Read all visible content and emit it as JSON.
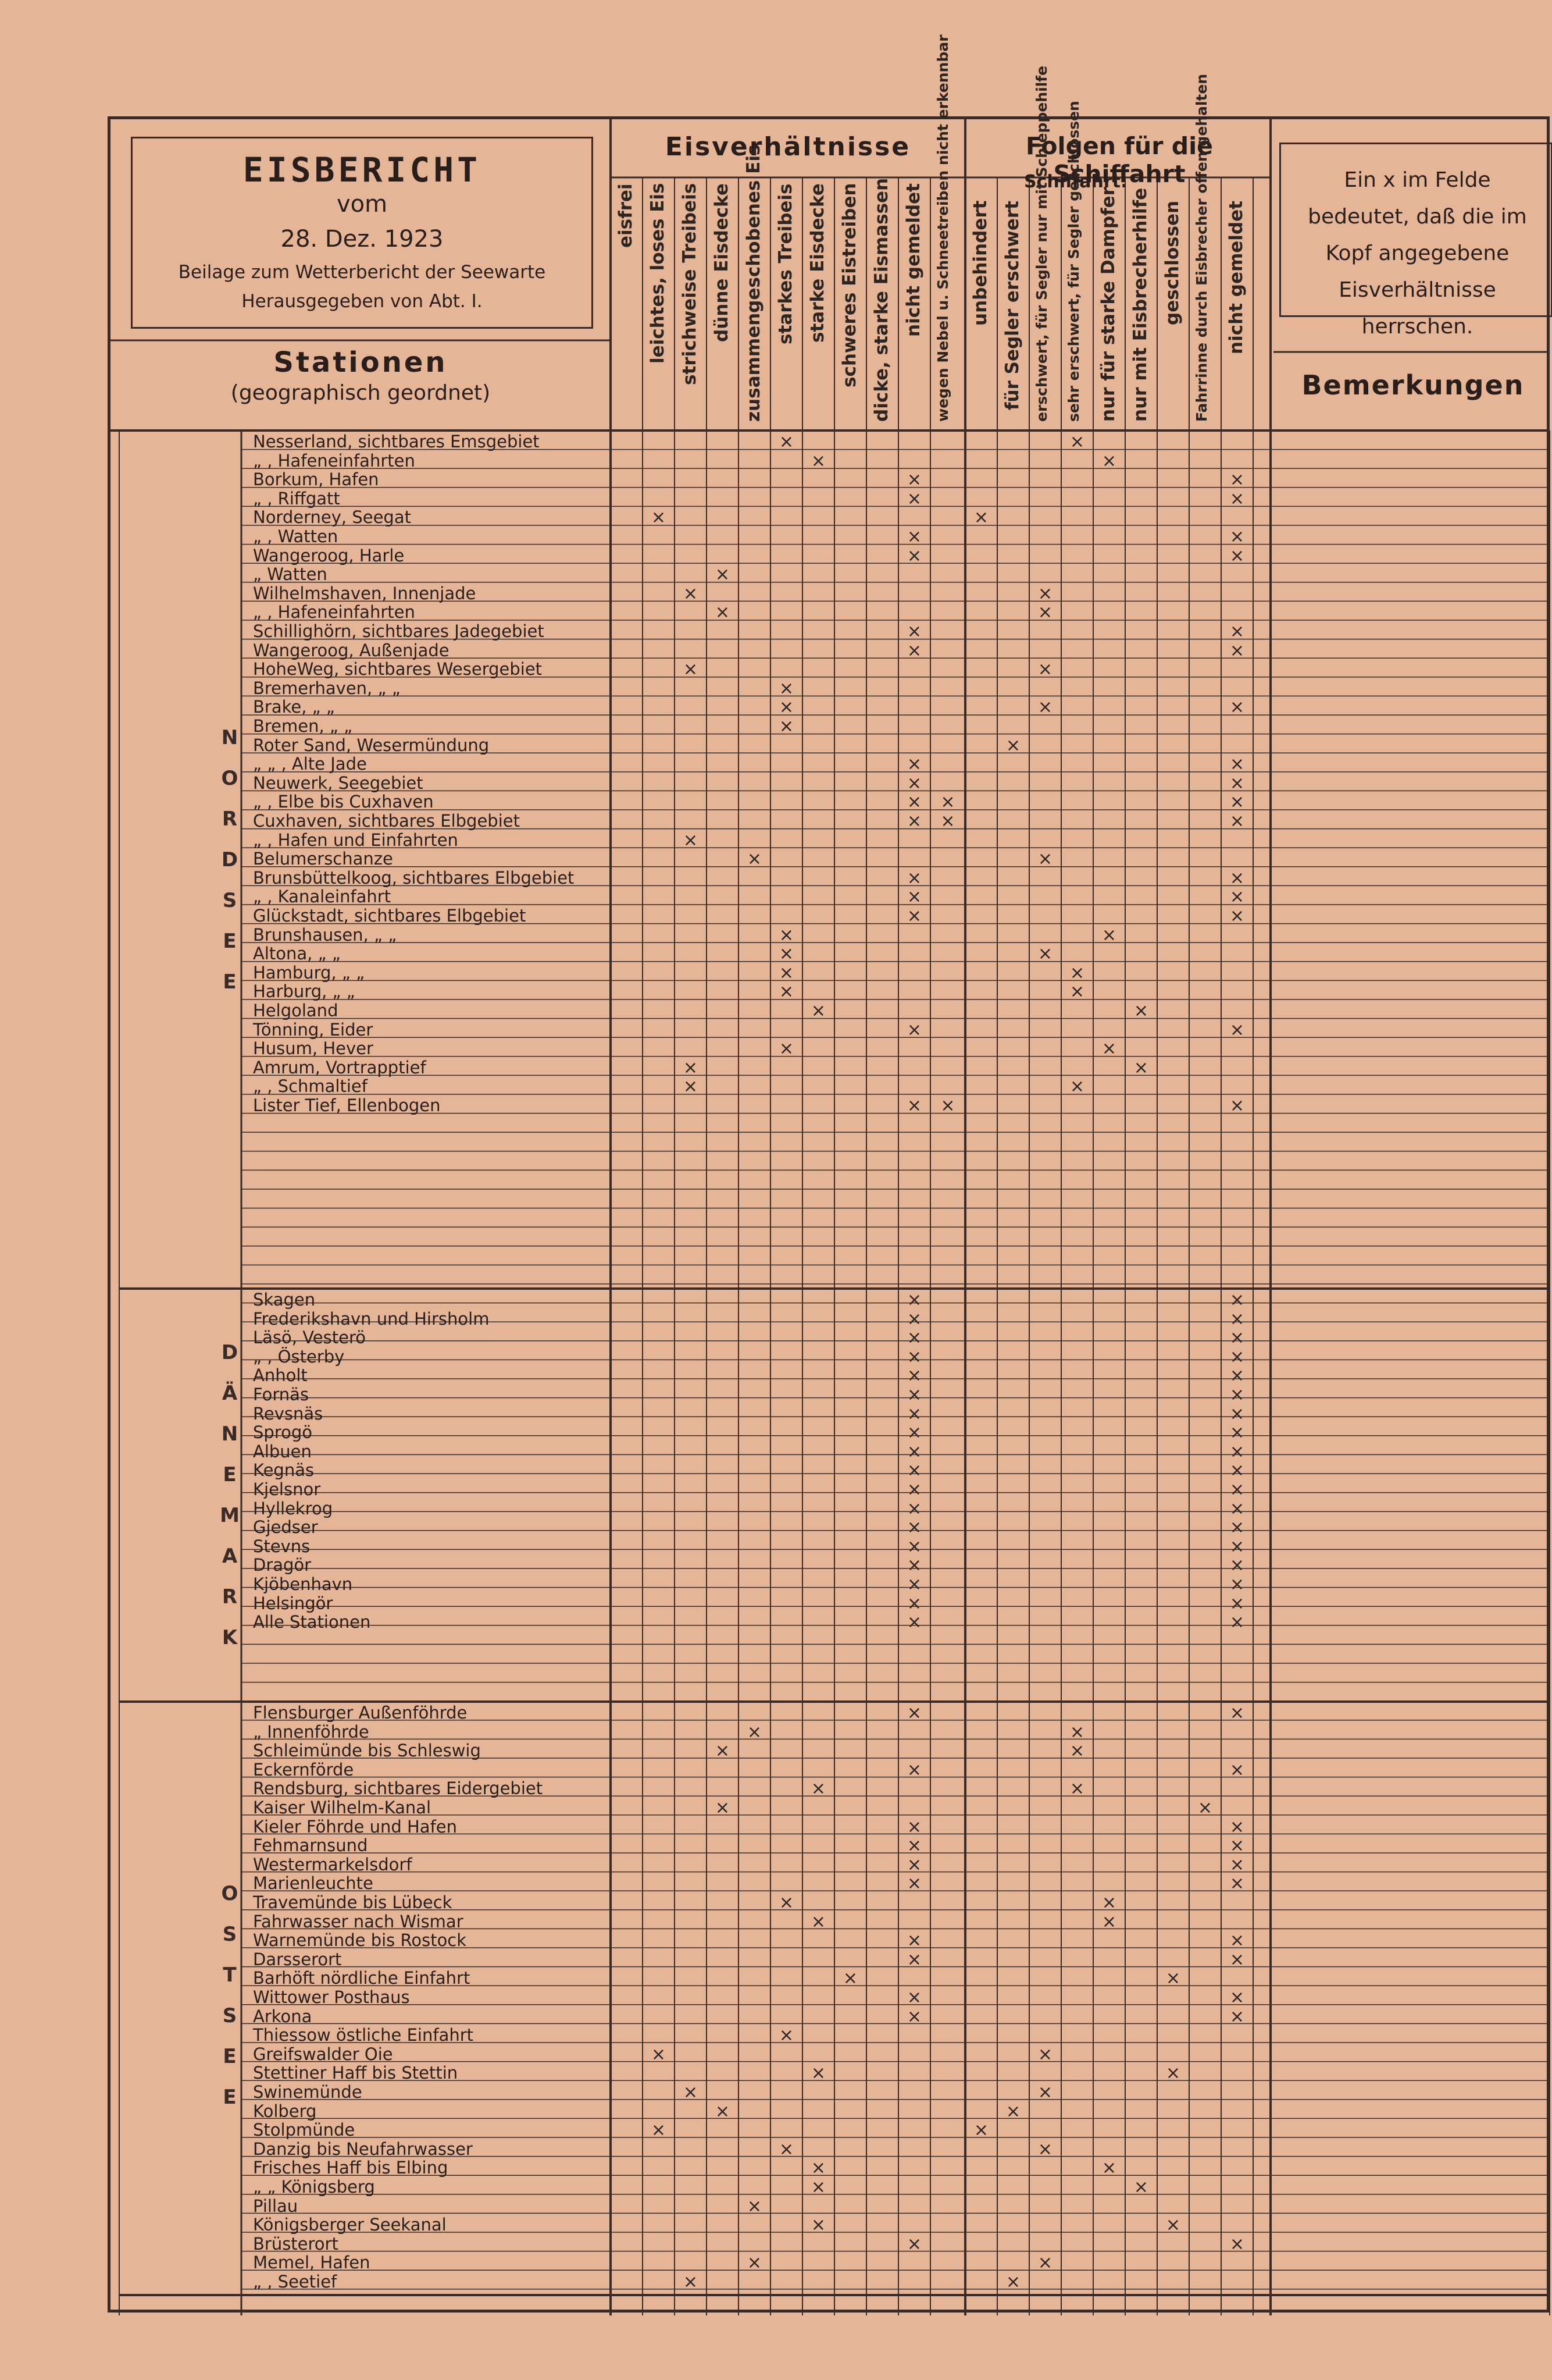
{
  "header": {
    "title": "EISBERICHT",
    "vom": "vom",
    "date": "28. Dez. 1923",
    "line1": "Beilage zum Wetterbericht der Seewarte",
    "line2": "Herausgegeben von Abt. I."
  },
  "groups": {
    "eisverhaeltnisse": "Eisverhältnisse",
    "folgen": "Folgen für die Schiffahrt",
    "schiffahrt": "Schiffahrt:"
  },
  "stations_header": {
    "label": "Stationen",
    "sub": "(geographisch geordnet)"
  },
  "note": "Ein x im Felde bedeutet, daß die im Kopf angegebene Eisverhältnisse herrschen.",
  "bemerkungen": "Bemerkungen",
  "columns": [
    "eisfrei",
    "leichtes, loses Eis",
    "strichweise Treibeis",
    "dünne Eisdecke",
    "zusammengeschobenes Eis",
    "starkes Treibeis",
    "starke Eisdecke",
    "schweres Eistreiben",
    "dicke, starke Eismassen",
    "nicht gemeldet",
    "wegen Nebel u. Schneetreiben nicht erkennbar",
    "unbehindert",
    "für Segler erschwert",
    "erschwert, für Segler nur mit Schleppehilfe",
    "sehr erschwert, für Segler geschlossen",
    "nur für starke Dampfer",
    "nur mit Eisbrecherhilfe",
    "geschlossen",
    "Fahrrinne durch Eisbrecher offen gehalten",
    "nicht gemeldet"
  ],
  "regions": [
    {
      "name": "NORDSEE",
      "rows": [
        {
          "station": "Nesserland, sichtbares Emsgebiet",
          "x": [
            5,
            14
          ]
        },
        {
          "station": "„ , Hafeneinfahrten",
          "x": [
            6,
            15
          ]
        },
        {
          "station": "Borkum, Hafen",
          "x": [
            9,
            19
          ]
        },
        {
          "station": "„ , Riffgatt",
          "x": [
            9,
            19
          ]
        },
        {
          "station": "Norderney, Seegat",
          "x": [
            1,
            11
          ]
        },
        {
          "station": "„ , Watten",
          "x": [
            9,
            19
          ]
        },
        {
          "station": "Wangeroog, Harle",
          "x": [
            9,
            19
          ]
        },
        {
          "station": "„ Watten",
          "x": [
            3
          ]
        },
        {
          "station": "Wilhelmshaven, Innenjade",
          "x": [
            2,
            13
          ]
        },
        {
          "station": "„ , Hafeneinfahrten",
          "x": [
            3,
            13
          ]
        },
        {
          "station": "Schillighörn, sichtbares Jadegebiet",
          "x": [
            9,
            19
          ]
        },
        {
          "station": "Wangeroog, Außenjade",
          "x": [
            9,
            19
          ]
        },
        {
          "station": "HoheWeg, sichtbares Wesergebiet",
          "x": [
            2,
            13
          ]
        },
        {
          "station": "Bremerhaven, „ „",
          "x": [
            5
          ]
        },
        {
          "station": "Brake, „ „",
          "x": [
            5,
            13,
            19
          ]
        },
        {
          "station": "Bremen, „ „",
          "x": [
            5
          ]
        },
        {
          "station": "Roter Sand, Wesermündung",
          "x": [
            12
          ]
        },
        {
          "station": "„ „ , Alte Jade",
          "x": [
            9,
            19
          ]
        },
        {
          "station": "Neuwerk, Seegebiet",
          "x": [
            9,
            19
          ]
        },
        {
          "station": "„ , Elbe bis Cuxhaven",
          "x": [
            9,
            10,
            19
          ]
        },
        {
          "station": "Cuxhaven, sichtbares Elbgebiet",
          "x": [
            9,
            10,
            19
          ]
        },
        {
          "station": "„ , Hafen und Einfahrten",
          "x": [
            2
          ]
        },
        {
          "station": "Belumerschanze",
          "x": [
            4,
            13
          ]
        },
        {
          "station": "Brunsbüttelkoog, sichtbares Elbgebiet",
          "x": [
            9,
            19
          ]
        },
        {
          "station": "„ , Kanaleinfahrt",
          "x": [
            9,
            19
          ]
        },
        {
          "station": "Glückstadt, sichtbares Elbgebiet",
          "x": [
            9,
            19
          ]
        },
        {
          "station": "Brunshausen, „ „",
          "x": [
            5,
            15
          ]
        },
        {
          "station": "Altona, „ „",
          "x": [
            5,
            13
          ]
        },
        {
          "station": "Hamburg, „ „",
          "x": [
            5,
            14
          ]
        },
        {
          "station": "Harburg, „ „",
          "x": [
            5,
            14
          ]
        },
        {
          "station": "Helgoland",
          "x": [
            6,
            16
          ]
        },
        {
          "station": "Tönning, Eider",
          "x": [
            9,
            19
          ]
        },
        {
          "station": "Husum, Hever",
          "x": [
            5,
            15
          ]
        },
        {
          "station": "Amrum, Vortrapptief",
          "x": [
            2,
            16
          ]
        },
        {
          "station": "„ , Schmaltief",
          "x": [
            2,
            14
          ]
        },
        {
          "station": "Lister Tief, Ellenbogen",
          "x": [
            9,
            10,
            19
          ]
        }
      ]
    },
    {
      "name": "DÄNEMARK",
      "rows": [
        {
          "station": "Skagen",
          "x": [
            9,
            19
          ]
        },
        {
          "station": "Frederikshavn und Hirsholm",
          "x": [
            9,
            19
          ]
        },
        {
          "station": "Läsö, Vesterö",
          "x": [
            9,
            19
          ]
        },
        {
          "station": "„ , Österby",
          "x": [
            9,
            19
          ]
        },
        {
          "station": "Anholt",
          "x": [
            9,
            19
          ]
        },
        {
          "station": "Fornäs",
          "x": [
            9,
            19
          ]
        },
        {
          "station": "Revsnäs",
          "x": [
            9,
            19
          ]
        },
        {
          "station": "Sprogö",
          "x": [
            9,
            19
          ]
        },
        {
          "station": "Albuen",
          "x": [
            9,
            19
          ]
        },
        {
          "station": "Kegnäs",
          "x": [
            9,
            19
          ]
        },
        {
          "station": "Kjelsnor",
          "x": [
            9,
            19
          ]
        },
        {
          "station": "Hyllekrog",
          "x": [
            9,
            19
          ]
        },
        {
          "station": "Gjedser",
          "x": [
            9,
            19
          ]
        },
        {
          "station": "Stevns",
          "x": [
            9,
            19
          ]
        },
        {
          "station": "Dragör",
          "x": [
            9,
            19
          ]
        },
        {
          "station": "Kjöbenhavn",
          "x": [
            9,
            19
          ]
        },
        {
          "station": "Helsingör",
          "x": [
            9,
            19
          ]
        },
        {
          "station": "Alle Stationen",
          "x": [
            9,
            19
          ]
        }
      ]
    },
    {
      "name": "OSTSEE",
      "rows": [
        {
          "station": "Flensburger Außenföhrde",
          "x": [
            9,
            19
          ]
        },
        {
          "station": "„ Innenföhrde",
          "x": [
            4,
            14
          ]
        },
        {
          "station": "Schleimünde bis Schleswig",
          "x": [
            3,
            14
          ]
        },
        {
          "station": "Eckernförde",
          "x": [
            9,
            19
          ]
        },
        {
          "station": "Rendsburg, sichtbares Eidergebiet",
          "x": [
            6,
            14
          ]
        },
        {
          "station": "Kaiser Wilhelm-Kanal",
          "x": [
            3,
            18
          ]
        },
        {
          "station": "Kieler Föhrde und Hafen",
          "x": [
            9,
            19
          ]
        },
        {
          "station": "Fehmarnsund",
          "x": [
            9,
            19
          ]
        },
        {
          "station": "Westermarkelsdorf",
          "x": [
            9,
            19
          ]
        },
        {
          "station": "Marienleuchte",
          "x": [
            9,
            19
          ]
        },
        {
          "station": "Travemünde bis Lübeck",
          "x": [
            5,
            15
          ]
        },
        {
          "station": "Fahrwasser nach Wismar",
          "x": [
            6,
            15
          ]
        },
        {
          "station": "Warnemünde bis Rostock",
          "x": [
            9,
            19
          ]
        },
        {
          "station": "Darsserort",
          "x": [
            9,
            19
          ]
        },
        {
          "station": "Barhöft nördliche Einfahrt",
          "x": [
            7,
            17
          ]
        },
        {
          "station": "Wittower Posthaus",
          "x": [
            9,
            19
          ]
        },
        {
          "station": "Arkona",
          "x": [
            9,
            19
          ]
        },
        {
          "station": "Thiessow östliche Einfahrt",
          "x": [
            5
          ]
        },
        {
          "station": "Greifswalder Oie",
          "x": [
            1,
            13
          ]
        },
        {
          "station": "Stettiner Haff bis Stettin",
          "x": [
            6,
            17
          ]
        },
        {
          "station": "Swinemünde",
          "x": [
            2,
            13
          ]
        },
        {
          "station": "Kolberg",
          "x": [
            3,
            12
          ]
        },
        {
          "station": "Stolpmünde",
          "x": [
            1,
            11
          ]
        },
        {
          "station": "Danzig bis Neufahrwasser",
          "x": [
            5,
            13
          ]
        },
        {
          "station": "Frisches Haff bis Elbing",
          "x": [
            6,
            15
          ]
        },
        {
          "station": "„ „ Königsberg",
          "x": [
            6,
            16
          ]
        },
        {
          "station": "Pillau",
          "x": [
            4
          ]
        },
        {
          "station": "Königsberger Seekanal",
          "x": [
            6,
            17
          ]
        },
        {
          "station": "Brüsterort",
          "x": [
            9,
            19
          ]
        },
        {
          "station": "Memel, Hafen",
          "x": [
            4,
            13
          ]
        },
        {
          "station": "„ , Seetief",
          "x": [
            2,
            12
          ]
        }
      ]
    }
  ]
}
